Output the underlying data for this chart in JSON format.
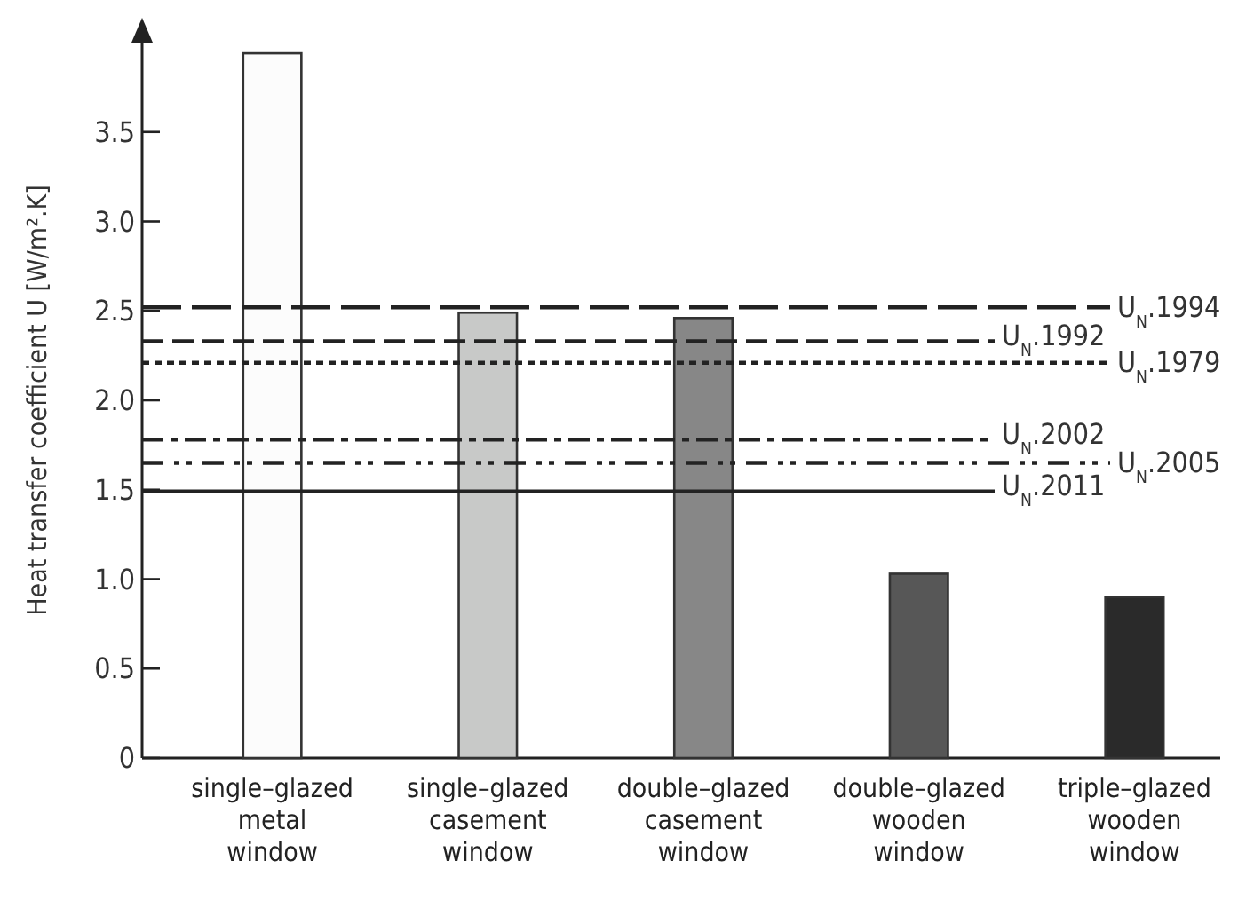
{
  "chart_data": {
    "type": "bar",
    "ylabel": "Heat transfer coefficient U [W/m².K]",
    "categories": [
      "single–glazed metal window",
      "single–glazed casement window",
      "double–glazed casement window",
      "double–glazed wooden window",
      "triple–glazed wooden window"
    ],
    "values": [
      3.94,
      2.49,
      2.46,
      1.03,
      0.9
    ],
    "colors": [
      "#fcfcfc",
      "#c8c9c8",
      "#878787",
      "#575757",
      "#2a2a2a"
    ],
    "ylim": [
      0,
      4.0
    ],
    "yticks": [
      0,
      {
        "value": 0.5,
        "label": "0.5"
      },
      {
        "value": 1,
        "label": "1.0"
      },
      {
        "value": 1.5,
        "label": "1.5"
      },
      {
        "value": 2,
        "label": "2.0"
      },
      {
        "value": 2.5,
        "label": "2.5"
      },
      {
        "value": 3,
        "label": "3.0"
      },
      {
        "value": 3.5,
        "label": "3.5"
      }
    ],
    "ref_lines": [
      {
        "axis": "y",
        "value": 2.52,
        "label": "U$_{N}$.1994",
        "line_style": "longdash"
      },
      {
        "axis": "y",
        "value": 2.33,
        "label": "U$_{N}$.1992",
        "line_style": "dashed"
      },
      {
        "axis": "y",
        "value": 2.21,
        "label": "U$_{N}$.1979",
        "line_style": "dotted"
      },
      {
        "axis": "y",
        "value": 1.78,
        "label": "U$_{N}$.2002",
        "line_style": "dashdot"
      },
      {
        "axis": "y",
        "value": 1.65,
        "label": "U$_{N}$.2005",
        "line_style": "dashdotdot"
      },
      {
        "axis": "y",
        "value": 1.49,
        "label": "U$_{N}$.2011",
        "line_style": "solid"
      }
    ]
  }
}
